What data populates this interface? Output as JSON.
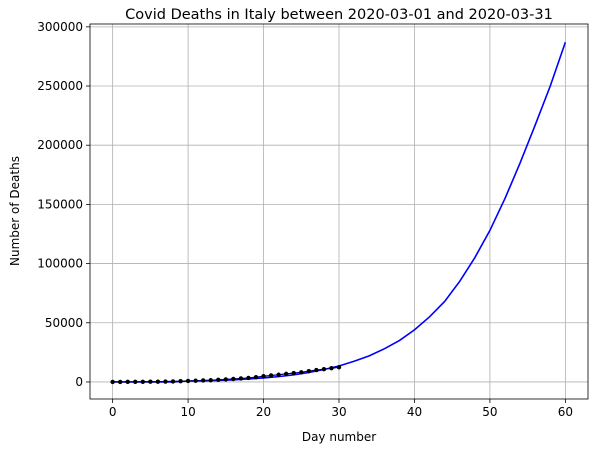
{
  "chart_data": {
    "type": "line",
    "title": "Covid Deaths in Italy between 2020-03-01 and 2020-03-31",
    "xlabel": "Day number",
    "ylabel": "Number of Deaths",
    "xlim": [
      -3,
      63
    ],
    "ylim": [
      -14400,
      302400
    ],
    "xticks": [
      0,
      10,
      20,
      30,
      40,
      50,
      60
    ],
    "yticks": [
      0,
      50000,
      100000,
      150000,
      200000,
      250000,
      300000
    ],
    "grid": true,
    "legend": "none",
    "series": [
      {
        "kind": "fit-curve",
        "color": "#0000ff",
        "x": [
          0,
          2,
          4,
          6,
          8,
          10,
          12,
          14,
          16,
          18,
          20,
          22,
          24,
          26,
          28,
          30,
          32,
          34,
          36,
          38,
          40,
          42,
          44,
          46,
          48,
          50,
          52,
          54,
          56,
          58,
          60
        ],
        "values": [
          0,
          0,
          0,
          0,
          0,
          800,
          1000,
          1300,
          1800,
          2500,
          3400,
          4500,
          6000,
          8000,
          10500,
          13500,
          17500,
          22000,
          28000,
          35000,
          44000,
          55000,
          68000,
          85000,
          105000,
          128000,
          155000,
          185000,
          217000,
          250000,
          287000
        ]
      },
      {
        "kind": "observed",
        "color": "#000080",
        "x": [
          0,
          1,
          2,
          3,
          4,
          5,
          6,
          7,
          8,
          9,
          10,
          11,
          12,
          13,
          14,
          15,
          16,
          17,
          18,
          19,
          20,
          21,
          22,
          23,
          24,
          25,
          26,
          27,
          28,
          29,
          30
        ],
        "values": [
          34,
          52,
          79,
          107,
          148,
          197,
          233,
          366,
          463,
          631,
          827,
          1016,
          1266,
          1441,
          1809,
          2158,
          2503,
          2978,
          3405,
          4032,
          4825,
          5476,
          6077,
          6820,
          7503,
          8165,
          9134,
          10023,
          10779,
          11591,
          12428
        ]
      }
    ]
  }
}
